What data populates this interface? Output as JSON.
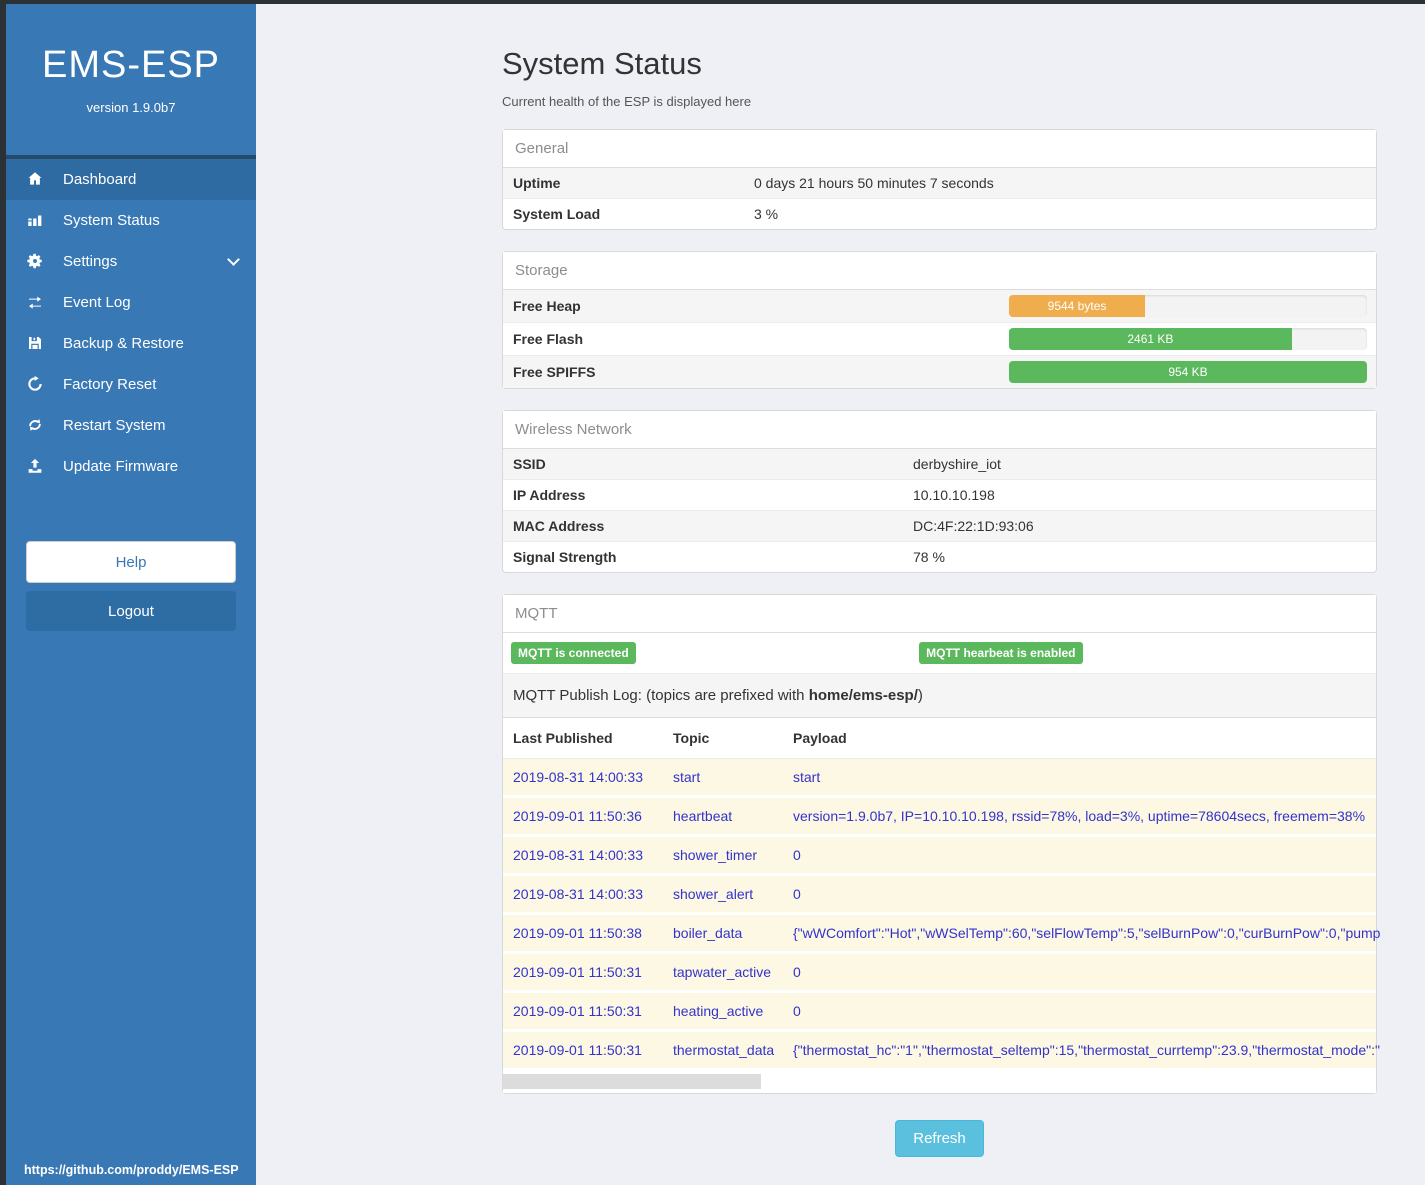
{
  "colors": {
    "sidebar_blue": "#3878b5",
    "sidebar_active_blue": "#2f6ba3",
    "logout_blue": "#2e6da4",
    "main_background": "#eef0f5",
    "badge_green": "#5cb85c",
    "heap_orange": "#f0ad4e",
    "refresh_cyan": "#5bc0de",
    "log_row_cream": "#fcf8e3",
    "log_text_blue": "#3333cc"
  },
  "sidebar": {
    "title": "EMS-ESP",
    "version": "version 1.9.0b7",
    "items": [
      {
        "label": "Dashboard",
        "icon": "home-icon",
        "active": true
      },
      {
        "label": "System Status",
        "icon": "chart-icon",
        "active": false
      },
      {
        "label": "Settings",
        "icon": "gear-icon",
        "active": false,
        "chevron": true
      },
      {
        "label": "Event Log",
        "icon": "exchange-icon",
        "active": false
      },
      {
        "label": "Backup & Restore",
        "icon": "save-icon",
        "active": false
      },
      {
        "label": "Factory Reset",
        "icon": "reset-icon",
        "active": false
      },
      {
        "label": "Restart System",
        "icon": "sync-icon",
        "active": false
      },
      {
        "label": "Update Firmware",
        "icon": "upload-icon",
        "active": false
      }
    ],
    "help_label": "Help",
    "logout_label": "Logout",
    "footer_link": "https://github.com/proddy/EMS-ESP"
  },
  "header": {
    "title": "System Status",
    "subtitle": "Current health of the ESP is displayed here"
  },
  "panels": {
    "general": {
      "title": "General",
      "rows": [
        {
          "label": "Uptime",
          "value": "0 days 21 hours 50 minutes 7 seconds"
        },
        {
          "label": "System Load",
          "value": "3 %"
        }
      ]
    },
    "storage": {
      "title": "Storage",
      "rows": [
        {
          "label": "Free Heap",
          "value": "9544 bytes",
          "percent": 38,
          "color": "#f0ad4e"
        },
        {
          "label": "Free Flash",
          "value": "2461 KB",
          "percent": 79,
          "color": "#5cb85c"
        },
        {
          "label": "Free SPIFFS",
          "value": "954 KB",
          "percent": 100,
          "color": "#5cb85c"
        }
      ]
    },
    "wireless": {
      "title": "Wireless Network",
      "rows": [
        {
          "label": "SSID",
          "value": "derbyshire_iot"
        },
        {
          "label": "IP Address",
          "value": "10.10.10.198"
        },
        {
          "label": "MAC Address",
          "value": "DC:4F:22:1D:93:06"
        },
        {
          "label": "Signal Strength",
          "value": "78 %"
        }
      ]
    },
    "mqtt": {
      "title": "MQTT",
      "badges": [
        "MQTT is connected",
        "MQTT hearbeat is enabled"
      ],
      "log_title_prefix": "MQTT Publish Log: (topics are prefixed with ",
      "log_title_bold": "home/ems-esp/",
      "log_title_suffix": ")",
      "table": {
        "headers": [
          "Last Published",
          "Topic",
          "Payload"
        ],
        "rows": [
          {
            "time": "2019-08-31 14:00:33",
            "topic": "start",
            "payload": "start"
          },
          {
            "time": "2019-09-01 11:50:36",
            "topic": "heartbeat",
            "payload": "version=1.9.0b7, IP=10.10.10.198, rssid=78%, load=3%, uptime=78604secs, freemem=38%"
          },
          {
            "time": "2019-08-31 14:00:33",
            "topic": "shower_timer",
            "payload": "0"
          },
          {
            "time": "2019-08-31 14:00:33",
            "topic": "shower_alert",
            "payload": "0"
          },
          {
            "time": "2019-09-01 11:50:38",
            "topic": "boiler_data",
            "payload": "{\"wWComfort\":\"Hot\",\"wWSelTemp\":60,\"selFlowTemp\":5,\"selBurnPow\":0,\"curBurnPow\":0,\"pump"
          },
          {
            "time": "2019-09-01 11:50:31",
            "topic": "tapwater_active",
            "payload": "0"
          },
          {
            "time": "2019-09-01 11:50:31",
            "topic": "heating_active",
            "payload": "0"
          },
          {
            "time": "2019-09-01 11:50:31",
            "topic": "thermostat_data",
            "payload": "{\"thermostat_hc\":\"1\",\"thermostat_seltemp\":15,\"thermostat_currtemp\":23.9,\"thermostat_mode\":\""
          }
        ]
      }
    }
  },
  "refresh_label": "Refresh"
}
